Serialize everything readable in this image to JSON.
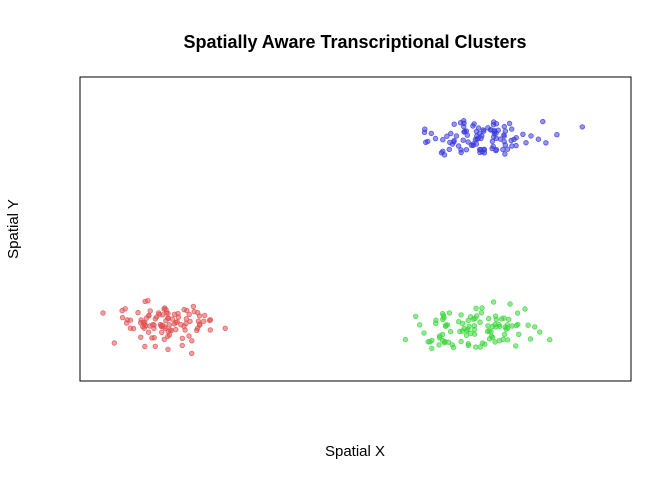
{
  "chart_data": {
    "type": "scatter",
    "title": "Spatially Aware Transcriptional Clusters",
    "xlabel": "Spatial X",
    "ylabel": "Spatial Y",
    "xlim": [
      0,
      100
    ],
    "ylim": [
      0,
      100
    ],
    "show_axes": false,
    "grid": false,
    "legend": "none",
    "series": [
      {
        "color": "#e05050",
        "center": [
          15,
          19
        ],
        "spread": [
          4.6,
          3.7
        ],
        "count": 100,
        "points": []
      },
      {
        "color": "#3a3ae0",
        "center": [
          73,
          80
        ],
        "spread": [
          5.2,
          3.3
        ],
        "count": 100,
        "points": []
      },
      {
        "color": "#3ad63a",
        "center": [
          73,
          17
        ],
        "spread": [
          5.3,
          3.9
        ],
        "count": 100,
        "points": []
      }
    ]
  }
}
